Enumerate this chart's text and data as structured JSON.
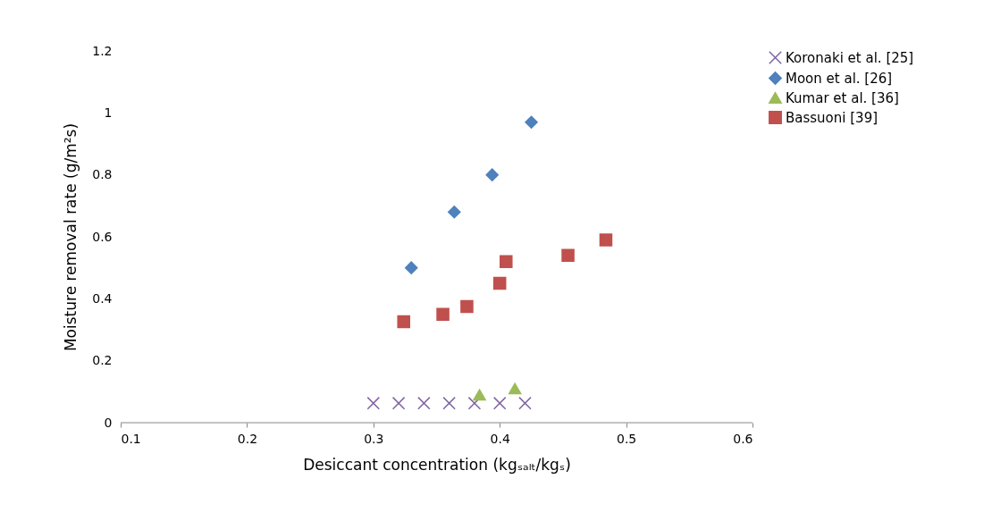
{
  "chart_data": {
    "type": "scatter",
    "xlabel": "Desiccant concentration (kgₛₐₗₜ/kgₛ)",
    "ylabel": "Moisture removal rate (g/m²s)",
    "xlim": [
      0.1,
      0.6
    ],
    "xticks": [
      0.1,
      0.2,
      0.3,
      0.4,
      0.5,
      0.6
    ],
    "ylim": [
      0,
      1.2
    ],
    "yticks": [
      0,
      0.2,
      0.4,
      0.6,
      0.8,
      1,
      1.2
    ],
    "grid": false,
    "legend": "right",
    "series": [
      {
        "name": "Koronaki et al. [25]",
        "color": "#8064a2",
        "marker": "cross",
        "x": [
          0.3,
          0.32,
          0.34,
          0.36,
          0.38,
          0.4,
          0.42
        ],
        "values": [
          0.063,
          0.063,
          0.063,
          0.063,
          0.063,
          0.063,
          0.063
        ]
      },
      {
        "name": "Moon et al. [26]",
        "color": "#4f81bd",
        "marker": "diamond",
        "x": [
          0.33,
          0.364,
          0.394,
          0.425
        ],
        "values": [
          0.5,
          0.68,
          0.8,
          0.97
        ]
      },
      {
        "name": "Kumar et al. [36]",
        "color": "#9bbb59",
        "marker": "triangle",
        "x": [
          0.384,
          0.412
        ],
        "values": [
          0.09,
          0.11
        ]
      },
      {
        "name": "Bassuoni [39]",
        "color": "#c0504d",
        "marker": "square",
        "x": [
          0.324,
          0.355,
          0.374,
          0.4,
          0.405,
          0.454,
          0.484
        ],
        "values": [
          0.326,
          0.35,
          0.375,
          0.45,
          0.52,
          0.54,
          0.59
        ]
      }
    ]
  }
}
